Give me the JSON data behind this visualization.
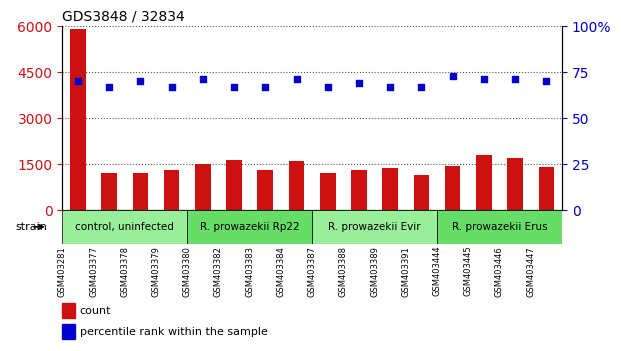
{
  "title": "GDS3848 / 32834",
  "samples": [
    "GSM403281",
    "GSM403377",
    "GSM403378",
    "GSM403379",
    "GSM403380",
    "GSM403382",
    "GSM403383",
    "GSM403384",
    "GSM403387",
    "GSM403388",
    "GSM403389",
    "GSM403391",
    "GSM403444",
    "GSM403445",
    "GSM403446",
    "GSM403447"
  ],
  "counts": [
    5900,
    1200,
    1200,
    1320,
    1500,
    1620,
    1320,
    1600,
    1200,
    1300,
    1380,
    1150,
    1450,
    1780,
    1680,
    1400
  ],
  "percentiles": [
    70,
    67,
    70,
    67,
    71,
    67,
    67,
    71,
    67,
    69,
    67,
    67,
    73,
    71,
    71,
    70
  ],
  "ylim_left": [
    0,
    6000
  ],
  "ylim_right": [
    0,
    100
  ],
  "yticks_left": [
    0,
    1500,
    3000,
    4500,
    6000
  ],
  "yticks_right": [
    0,
    25,
    50,
    75,
    100
  ],
  "bar_color": "#cc1111",
  "dot_color": "#0000cc",
  "grid_dotted_color": "#555555",
  "background_color": "#ffffff",
  "tick_area_color": "#cccccc",
  "strain_label": "strain",
  "strain_groups": [
    {
      "label": "control, uninfected",
      "start": 0,
      "end": 4,
      "color": "#99ee99"
    },
    {
      "label": "R. prowazekii Rp22",
      "start": 4,
      "end": 8,
      "color": "#66dd66"
    },
    {
      "label": "R. prowazekii Evir",
      "start": 8,
      "end": 12,
      "color": "#99ee99"
    },
    {
      "label": "R. prowazekii Erus",
      "start": 12,
      "end": 16,
      "color": "#66dd66"
    }
  ],
  "legend_count_label": "count",
  "legend_pct_label": "percentile rank within the sample",
  "title_color": "#000000",
  "left_axis_color": "#cc1111",
  "right_axis_color": "#0000cc"
}
